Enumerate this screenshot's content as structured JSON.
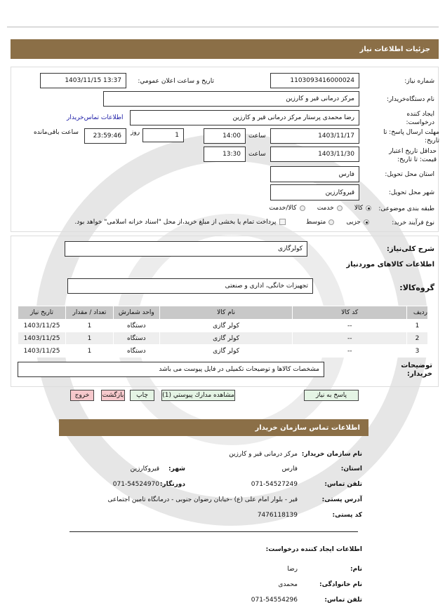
{
  "page_header": "جزئیات اطلاعات نیاز",
  "details": {
    "need_number_label": "شماره نیاز:",
    "need_number": "1103093416000024",
    "announce_label": "تاريخ و ساعت اعلان عمومي:",
    "announce_value": "1403/11/15 13:37",
    "buyer_label": "نام دستگاه‌خریدار:",
    "buyer": "مرکز درمانی قیر و کارزین",
    "creator_label": "ایجاد کننده درخواست:",
    "creator": "رضا محمدی پرستار مرکز درمانی قیر و کارزین",
    "contact_link": "اطلاعات تماس‌خریدار",
    "deadline_label": "مهلت ارسال پاسخ: تا تاریخ:",
    "deadline_date": "1403/11/17",
    "time_label": "ساعت",
    "deadline_time": "14:00",
    "days": "1",
    "days_label": "روز",
    "remaining": "23:59:46",
    "remaining_label": "ساعت باقی‌مانده",
    "validity_label": "حداقل تاریخ اعتبار قیمت: تا تاریخ:",
    "validity_date": "1403/11/30",
    "validity_time": "13:30",
    "province_label": "استان محل تحویل:",
    "province": "فارس",
    "city_label": "شهر محل تحویل:",
    "city": "قیروکارزین",
    "category_label": "طبقه بندی موضوعی:",
    "category_options": [
      "کالا",
      "خدمت",
      "کالا/خدمت"
    ],
    "category_selected": "کالا",
    "process_label": "نوع فرآیند خرید:",
    "process_options": [
      "جزیی",
      "متوسط"
    ],
    "process_selected": "جزیی",
    "payment_note": "پرداخت تمام یا بخشی از مبلغ خرید،از محل \"اسناد خزانه اسلامی\" خواهد بود."
  },
  "goods": {
    "summary_label": "شرح کلی‌نیاز:",
    "summary": "کولرگازی",
    "section_title": "اطلاعات کالاهای موردنیاز",
    "group_label": "گروه‌کالا:",
    "group": "تجهیزات خانگی، اداری و صنعتی",
    "columns": [
      "ردیف",
      "کد کالا",
      "نام کالا",
      "واحد شمارش",
      "تعداد / مقدار",
      "تاریخ نیاز"
    ],
    "rows": [
      [
        "1",
        "--",
        "کولر گازی",
        "دستگاه",
        "1",
        "1403/11/25"
      ],
      [
        "2",
        "--",
        "کولر گازی",
        "دستگاه",
        "1",
        "1403/11/25"
      ],
      [
        "3",
        "--",
        "کولر گازی",
        "دستگاه",
        "1",
        "1403/11/25"
      ]
    ],
    "notes_label": "توضیحات خریدار:",
    "notes": "مشخصات کالاها و توضیحات تکمیلی در فایل پیوست می باشد"
  },
  "buttons": {
    "reply": "پاسخ به نیاز",
    "attachments": "مشاهده مدارك پيوستي (1)",
    "print": "چاپ",
    "back": "بازگشت",
    "exit": "خروج"
  },
  "contact": {
    "title": "اطلاعات تماس سازمان خریدار",
    "org_label": "نام سازمان خریدار:",
    "org": "مرکز درمانی قیر و کارزین",
    "province_label": "استان:",
    "province": "فارس",
    "city_label": "شهر:",
    "city": "قیروکارزین",
    "phone_label": "تلفن تماس:",
    "phone": "071-54527249",
    "fax_label": "دورنگار:",
    "fax": "071-54524970",
    "address_label": "آدرس پستی:",
    "address": "قیر - بلوار امام علی (ع) -خیابان رضوان جنوبی - درمانگاه تامین اجتماعی",
    "postal_label": "کد پستی:",
    "postal": "7476118139",
    "creator_title": "اطلاعات ایجاد کننده درخواست:",
    "name_label": "نام:",
    "name": "رضا",
    "family_label": "نام خانوادگی:",
    "family": "محمدی",
    "creator_phone_label": "تلفن تماس:",
    "creator_phone": "071-54554296"
  },
  "colors": {
    "header": "#8b6f47",
    "link": "#1a1aa6",
    "button_green": "#e4f4e4",
    "button_red": "#f6c8cc"
  }
}
